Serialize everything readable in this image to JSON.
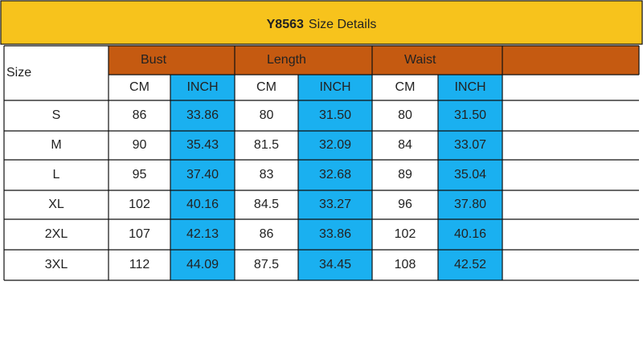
{
  "title": {
    "code": "Y8563",
    "text": "Size Details"
  },
  "table": {
    "size_label": "Size",
    "groups": [
      "Bust",
      "Length",
      "Waist"
    ],
    "units": [
      "CM",
      "INCH"
    ],
    "rows": [
      [
        "S",
        "86",
        "33.86",
        "80",
        "31.50",
        "80",
        "31.50"
      ],
      [
        "M",
        "90",
        "35.43",
        "81.5",
        "32.09",
        "84",
        "33.07"
      ],
      [
        "L",
        "95",
        "37.40",
        "83",
        "32.68",
        "89",
        "35.04"
      ],
      [
        "XL",
        "102",
        "40.16",
        "84.5",
        "33.27",
        "96",
        "37.80"
      ],
      [
        "2XL",
        "107",
        "42.13",
        "86",
        "33.86",
        "102",
        "40.16"
      ],
      [
        "3XL",
        "112",
        "44.09",
        "87.5",
        "34.45",
        "108",
        "42.52"
      ]
    ]
  }
}
